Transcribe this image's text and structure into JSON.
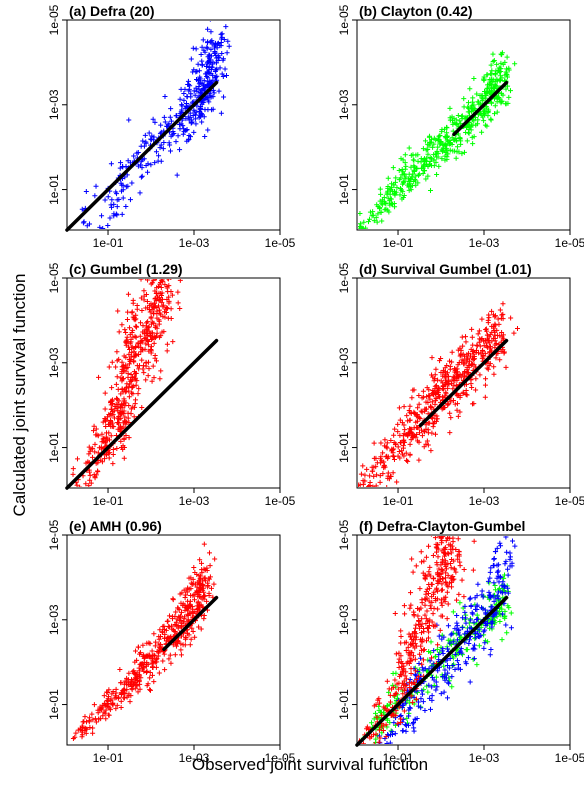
{
  "figure": {
    "ylabel": "Calculated joint survival function",
    "xlabel": "Observed joint survival function"
  },
  "chart_data": [
    {
      "type": "scatter",
      "title": "(a) Defra (20)",
      "x_ticks": [
        "1e-01",
        "1e-03",
        "1e-05"
      ],
      "y_ticks": [
        "1e-01",
        "1e-03",
        "1e-05"
      ],
      "log_scale": true,
      "reversed_axes": true,
      "xlim": [
        0.9,
        1e-05
      ],
      "ylim": [
        0.9,
        1e-05
      ],
      "reference_line": {
        "x": [
          0.9,
          0.0003
        ],
        "y": [
          0.9,
          0.0003
        ]
      },
      "series": [
        {
          "color": "#0000ff",
          "cloud": [
            [
              0.9,
              0.9,
              0.25
            ],
            [
              0.1,
              0.3,
              0.3
            ],
            [
              0.03,
              0.04,
              0.35
            ],
            [
              0.005,
              0.005,
              0.35
            ],
            [
              0.001,
              0.001,
              0.4
            ],
            [
              0.0005,
              0.0003,
              0.45
            ],
            [
              0.0003,
              5e-05,
              0.4
            ]
          ],
          "n": 420
        }
      ]
    },
    {
      "type": "scatter",
      "title": "(b) Clayton (0.42)",
      "x_ticks": [
        "1e-01",
        "1e-03",
        "1e-05"
      ],
      "y_ticks": [
        "1e-01",
        "1e-03",
        "1e-05"
      ],
      "log_scale": true,
      "reversed_axes": true,
      "xlim": [
        0.9,
        1e-05
      ],
      "ylim": [
        0.9,
        1e-05
      ],
      "reference_line": {
        "x": [
          0.005,
          0.0003
        ],
        "y": [
          0.005,
          0.0003
        ]
      },
      "series": [
        {
          "color": "#00ff00",
          "cloud": [
            [
              0.9,
              0.9,
              0.08
            ],
            [
              0.3,
              0.3,
              0.18
            ],
            [
              0.1,
              0.1,
              0.22
            ],
            [
              0.03,
              0.03,
              0.25
            ],
            [
              0.005,
              0.005,
              0.25
            ],
            [
              0.001,
              0.001,
              0.3
            ],
            [
              0.0003,
              0.0002,
              0.3
            ]
          ],
          "n": 520
        }
      ]
    },
    {
      "type": "scatter",
      "title": "(c) Gumbel (1.29)",
      "x_ticks": [
        "1e-01",
        "1e-03",
        "1e-05"
      ],
      "y_ticks": [
        "1e-01",
        "1e-03",
        "1e-05"
      ],
      "log_scale": true,
      "reversed_axes": true,
      "xlim": [
        0.9,
        1e-05
      ],
      "ylim": [
        0.9,
        1e-05
      ],
      "reference_line": {
        "x": [
          0.9,
          0.0003
        ],
        "y": [
          0.9,
          0.0003
        ]
      },
      "series": [
        {
          "color": "#ff0000",
          "cloud": [
            [
              0.9,
              0.9,
              0.1
            ],
            [
              0.3,
              0.3,
              0.25
            ],
            [
              0.1,
              0.07,
              0.35
            ],
            [
              0.05,
              0.01,
              0.45
            ],
            [
              0.03,
              0.001,
              0.55
            ],
            [
              0.01,
              0.0001,
              0.6
            ],
            [
              0.005,
              1e-05,
              0.5
            ]
          ],
          "n": 560
        }
      ]
    },
    {
      "type": "scatter",
      "title": "(d) Survival Gumbel (1.01)",
      "x_ticks": [
        "1e-01",
        "1e-03",
        "1e-05"
      ],
      "y_ticks": [
        "1e-01",
        "1e-03",
        "1e-05"
      ],
      "log_scale": true,
      "reversed_axes": true,
      "xlim": [
        0.9,
        1e-05
      ],
      "ylim": [
        0.9,
        1e-05
      ],
      "reference_line": {
        "x": [
          0.03,
          0.0003
        ],
        "y": [
          0.03,
          0.0003
        ]
      },
      "series": [
        {
          "color": "#ff0000",
          "cloud": [
            [
              0.9,
              0.9,
              0.15
            ],
            [
              0.3,
              0.3,
              0.3
            ],
            [
              0.1,
              0.08,
              0.35
            ],
            [
              0.03,
              0.02,
              0.35
            ],
            [
              0.01,
              0.005,
              0.35
            ],
            [
              0.002,
              0.001,
              0.4
            ],
            [
              0.0003,
              0.0002,
              0.35
            ]
          ],
          "n": 560
        }
      ]
    },
    {
      "type": "scatter",
      "title": "(e) AMH (0.96)",
      "x_ticks": [
        "1e-01",
        "1e-03",
        "1e-05"
      ],
      "y_ticks": [
        "1e-01",
        "1e-03",
        "1e-05"
      ],
      "log_scale": true,
      "reversed_axes": true,
      "xlim": [
        0.9,
        1e-05
      ],
      "ylim": [
        0.9,
        1e-05
      ],
      "reference_line": {
        "x": [
          0.005,
          0.0003
        ],
        "y": [
          0.005,
          0.0003
        ]
      },
      "series": [
        {
          "color": "#ff0000",
          "cloud": [
            [
              0.9,
              0.9,
              0.08
            ],
            [
              0.3,
              0.3,
              0.12
            ],
            [
              0.1,
              0.1,
              0.15
            ],
            [
              0.03,
              0.03,
              0.2
            ],
            [
              0.01,
              0.008,
              0.25
            ],
            [
              0.003,
              0.002,
              0.3
            ],
            [
              0.001,
              0.0005,
              0.35
            ],
            [
              0.0005,
              0.0001,
              0.3
            ]
          ],
          "n": 520
        }
      ]
    },
    {
      "type": "scatter",
      "title": "(f) Defra-Clayton-Gumbel",
      "x_ticks": [
        "1e-01",
        "1e-03",
        "1e-05"
      ],
      "y_ticks": [
        "1e-01",
        "1e-03",
        "1e-05"
      ],
      "log_scale": true,
      "reversed_axes": true,
      "xlim": [
        0.9,
        1e-05
      ],
      "ylim": [
        0.9,
        1e-05
      ],
      "reference_line": {
        "x": [
          0.9,
          0.0003
        ],
        "y": [
          0.9,
          0.0003
        ]
      },
      "series": [
        {
          "color": "#00ff00",
          "cloud": [
            [
              0.9,
              0.9,
              0.1
            ],
            [
              0.3,
              0.3,
              0.2
            ],
            [
              0.1,
              0.1,
              0.25
            ],
            [
              0.01,
              0.01,
              0.3
            ],
            [
              0.001,
              0.001,
              0.3
            ],
            [
              0.0003,
              0.0003,
              0.3
            ]
          ],
          "n": 260
        },
        {
          "color": "#0000ff",
          "cloud": [
            [
              0.3,
              0.9,
              0.2
            ],
            [
              0.1,
              0.3,
              0.3
            ],
            [
              0.03,
              0.04,
              0.35
            ],
            [
              0.005,
              0.005,
              0.35
            ],
            [
              0.001,
              0.001,
              0.4
            ],
            [
              0.0003,
              5e-05,
              0.4
            ]
          ],
          "n": 320
        },
        {
          "color": "#ff0000",
          "cloud": [
            [
              0.9,
              0.9,
              0.1
            ],
            [
              0.3,
              0.3,
              0.25
            ],
            [
              0.1,
              0.07,
              0.35
            ],
            [
              0.05,
              0.01,
              0.45
            ],
            [
              0.03,
              0.001,
              0.55
            ],
            [
              0.01,
              0.0001,
              0.6
            ],
            [
              0.005,
              1e-05,
              0.5
            ]
          ],
          "n": 420
        }
      ]
    }
  ]
}
